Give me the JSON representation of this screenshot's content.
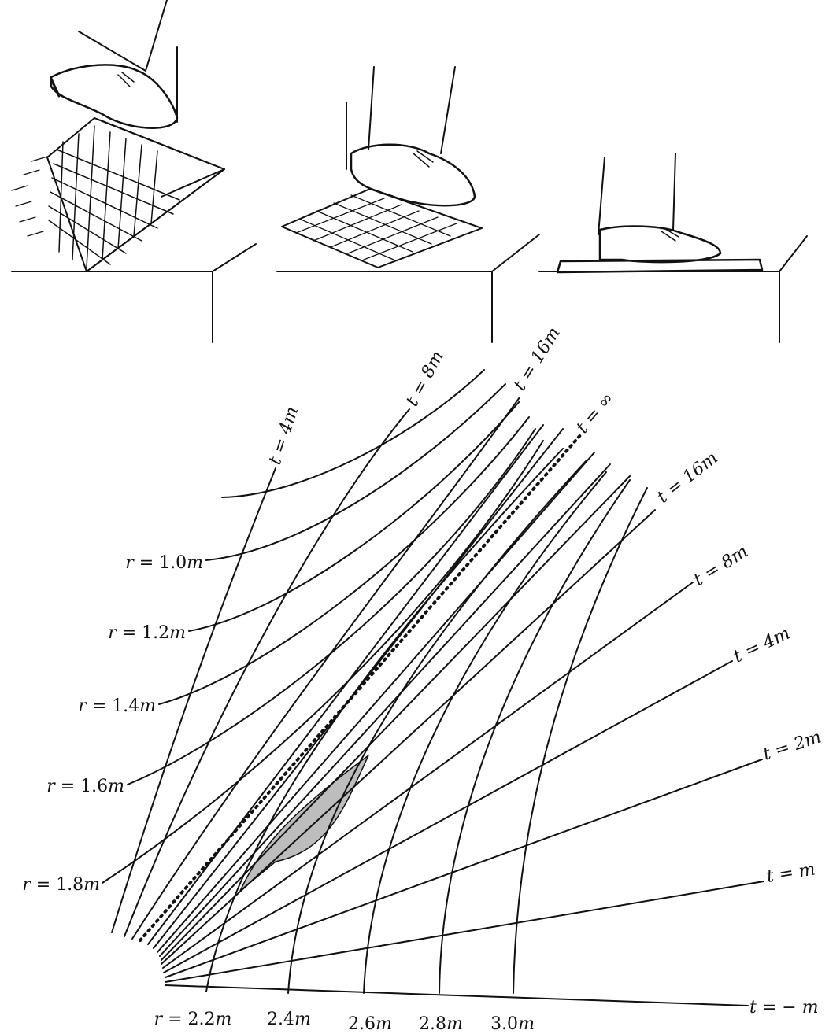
{
  "illustration": {
    "panels": [
      "foot-on-tilted-grid-block",
      "foot-stepping-on-flattening-grid",
      "foot-on-flat-plate"
    ]
  },
  "diagram": {
    "r_labels": [
      {
        "prefix": "r = ",
        "value": "1.0",
        "unit": "m"
      },
      {
        "prefix": "r = ",
        "value": "1.2",
        "unit": "m"
      },
      {
        "prefix": "r = ",
        "value": "1.4",
        "unit": "m"
      },
      {
        "prefix": "r = ",
        "value": "1.6",
        "unit": "m"
      },
      {
        "prefix": "r = ",
        "value": "1.8",
        "unit": "m"
      }
    ],
    "r_bottom_labels": [
      {
        "prefix": "r = ",
        "value": "2.2",
        "unit": "m"
      },
      {
        "prefix": "",
        "value": "2.4",
        "unit": "m"
      },
      {
        "prefix": "",
        "value": "2.6",
        "unit": "m"
      },
      {
        "prefix": "",
        "value": "2.8",
        "unit": "m"
      },
      {
        "prefix": "",
        "value": "3.0",
        "unit": "m"
      }
    ],
    "t_labels_upper": [
      {
        "text": "t = 4",
        "unit": "m"
      },
      {
        "text": "t = 8",
        "unit": "m"
      },
      {
        "text": "t = 16",
        "unit": "m"
      },
      {
        "text": "t = ∞",
        "unit": ""
      }
    ],
    "t_labels_right": [
      {
        "text": "t = 16",
        "unit": "m"
      },
      {
        "text": "t = 8",
        "unit": "m"
      },
      {
        "text": "t = 4",
        "unit": "m"
      },
      {
        "text": "t = 2",
        "unit": "m"
      },
      {
        "text": "t = ",
        "unit": "m"
      },
      {
        "text": "t = − ",
        "unit": "m"
      }
    ]
  }
}
